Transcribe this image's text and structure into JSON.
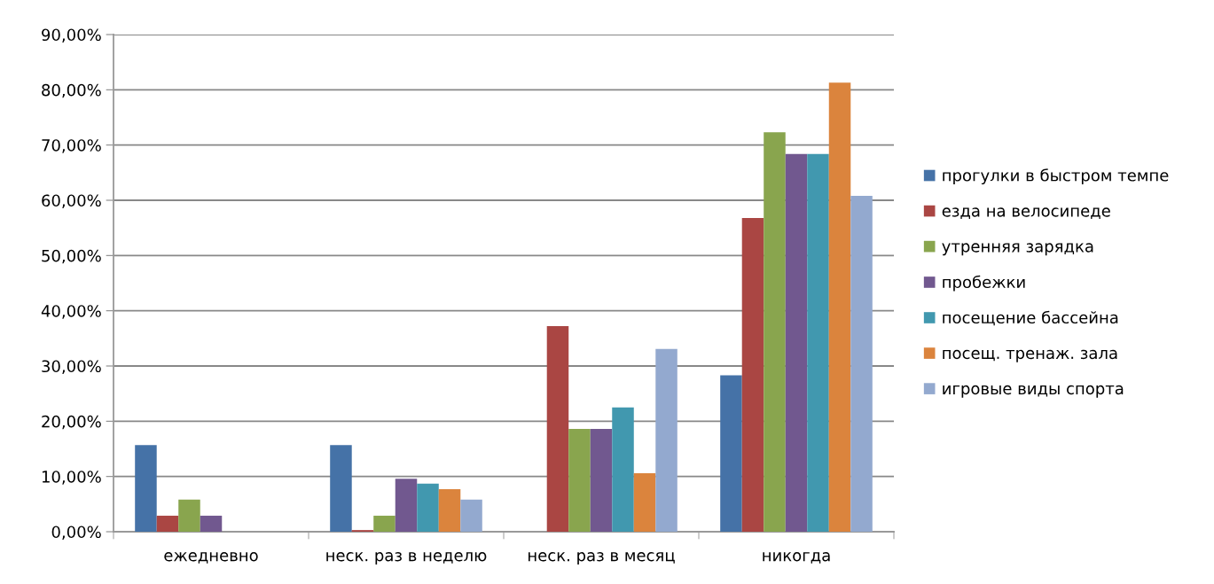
{
  "chart_data": {
    "type": "bar",
    "categories": [
      "ежедневно",
      "неск. раз в неделю",
      "неск. раз в месяц",
      "никогда"
    ],
    "series": [
      {
        "name": "прогулки в быстром темпе",
        "color": "#4572a7",
        "values": [
          15.7,
          15.7,
          0,
          28.3
        ]
      },
      {
        "name": "езда на велосипеде",
        "color": "#aa4643",
        "values": [
          2.9,
          0.3,
          37.2,
          56.8
        ]
      },
      {
        "name": "утренняя зарядка",
        "color": "#89a54e",
        "values": [
          5.8,
          2.9,
          18.6,
          72.3
        ]
      },
      {
        "name": "пробежки",
        "color": "#71588f",
        "values": [
          2.9,
          9.6,
          18.6,
          68.4
        ]
      },
      {
        "name": "посещение бассейна",
        "color": "#4198af",
        "values": [
          0,
          8.7,
          22.5,
          68.4
        ]
      },
      {
        "name": "посещ. тренаж. зала",
        "color": "#db843d",
        "values": [
          0,
          7.7,
          10.6,
          81.3
        ]
      },
      {
        "name": "игровые виды спорта",
        "color": "#93a9cf",
        "values": [
          0,
          5.8,
          33.1,
          60.8
        ]
      }
    ],
    "ylim": [
      0,
      90
    ],
    "yticks": [
      {
        "value": 0,
        "label": "0,00%"
      },
      {
        "value": 10,
        "label": "10,00%"
      },
      {
        "value": 20,
        "label": "20,00%"
      },
      {
        "value": 30,
        "label": "30,00%"
      },
      {
        "value": 40,
        "label": "40,00%"
      },
      {
        "value": 50,
        "label": "50,00%"
      },
      {
        "value": 60,
        "label": "60,00%"
      },
      {
        "value": 70,
        "label": "70,00%"
      },
      {
        "value": 80,
        "label": "80,00%"
      },
      {
        "value": 90,
        "label": "90,00%"
      }
    ],
    "grid": "y",
    "legend": "right"
  }
}
